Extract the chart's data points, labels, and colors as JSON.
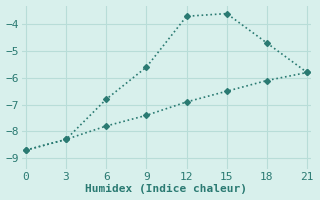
{
  "line1_x": [
    0,
    3,
    6,
    9,
    12,
    15,
    18,
    21
  ],
  "line1_y": [
    -8.7,
    -8.3,
    -6.8,
    -5.6,
    -3.7,
    -3.6,
    -4.7,
    -5.8
  ],
  "line2_x": [
    0,
    3,
    6,
    9,
    12,
    15,
    18,
    21
  ],
  "line2_y": [
    -8.7,
    -8.3,
    -7.8,
    -7.4,
    -6.9,
    -6.5,
    -6.1,
    -5.8
  ],
  "line_color": "#2a7a72",
  "bg_color": "#d8f0ec",
  "grid_color": "#b8ddd8",
  "xlabel": "Humidex (Indice chaleur)",
  "xticks": [
    0,
    3,
    6,
    9,
    12,
    15,
    18,
    21
  ],
  "yticks": [
    -9,
    -8,
    -7,
    -6,
    -5,
    -4
  ],
  "xlim": [
    -0.3,
    21.3
  ],
  "ylim": [
    -9.4,
    -3.3
  ],
  "marker": "D",
  "marker_size": 3,
  "font_size": 8,
  "label_color": "#2a7a72"
}
